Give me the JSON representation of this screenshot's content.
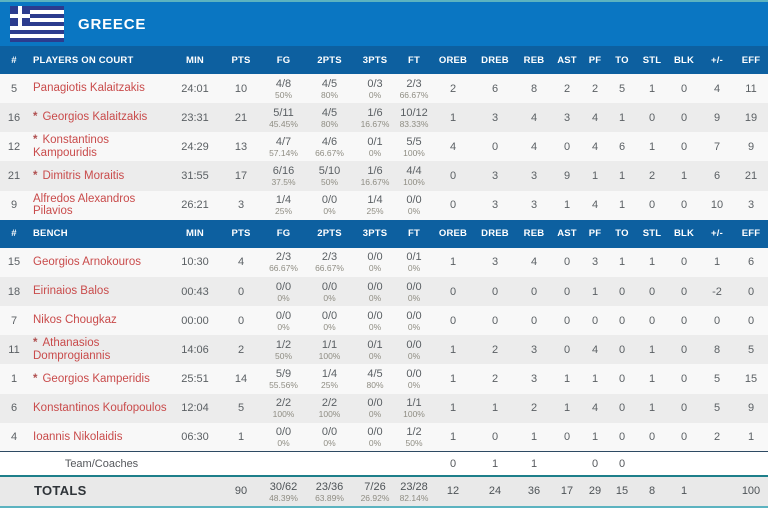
{
  "colors": {
    "title_bar_blue": "#0a76c2",
    "header_row_blue": "#0d60a0",
    "flag_navy": "#2c3c8e",
    "player_name_red": "#c94b4b",
    "totals_border_teal": "#1d7f8a",
    "team_row_border_navy": "#2e4a63",
    "row_alt_gray": "#ececec",
    "totals_bg_gray": "#e9e9e9"
  },
  "team": {
    "name": "GREECE",
    "flag": "greece-flag"
  },
  "table": {
    "columns": [
      "#",
      "PLAYERS ON COURT",
      "MIN",
      "PTS",
      "FG",
      "2PTS",
      "3PTS",
      "FT",
      "OREB",
      "DREB",
      "REB",
      "AST",
      "PF",
      "TO",
      "STL",
      "BLK",
      "+/-",
      "EFF"
    ],
    "bench_label": "BENCH",
    "on_court": [
      {
        "num": "5",
        "starter": false,
        "name": "Panagiotis Kalaitzakis",
        "min": "24:01",
        "pts": "10",
        "fg": "4/8",
        "fg_pct": "50%",
        "p2": "4/5",
        "p2_pct": "80%",
        "p3": "0/3",
        "p3_pct": "0%",
        "ft": "2/3",
        "ft_pct": "66.67%",
        "oreb": "2",
        "dreb": "6",
        "reb": "8",
        "ast": "2",
        "pf": "2",
        "to": "5",
        "stl": "1",
        "blk": "0",
        "pm": "4",
        "eff": "11"
      },
      {
        "num": "16",
        "starter": true,
        "name": "Georgios Kalaitzakis",
        "min": "23:31",
        "pts": "21",
        "fg": "5/11",
        "fg_pct": "45.45%",
        "p2": "4/5",
        "p2_pct": "80%",
        "p3": "1/6",
        "p3_pct": "16.67%",
        "ft": "10/12",
        "ft_pct": "83.33%",
        "oreb": "1",
        "dreb": "3",
        "reb": "4",
        "ast": "3",
        "pf": "4",
        "to": "1",
        "stl": "0",
        "blk": "0",
        "pm": "9",
        "eff": "19"
      },
      {
        "num": "12",
        "starter": true,
        "name": "Konstantinos Kampouridis",
        "min": "24:29",
        "pts": "13",
        "fg": "4/7",
        "fg_pct": "57.14%",
        "p2": "4/6",
        "p2_pct": "66.67%",
        "p3": "0/1",
        "p3_pct": "0%",
        "ft": "5/5",
        "ft_pct": "100%",
        "oreb": "4",
        "dreb": "0",
        "reb": "4",
        "ast": "0",
        "pf": "4",
        "to": "6",
        "stl": "1",
        "blk": "0",
        "pm": "7",
        "eff": "9"
      },
      {
        "num": "21",
        "starter": true,
        "name": "Dimitris Moraitis",
        "min": "31:55",
        "pts": "17",
        "fg": "6/16",
        "fg_pct": "37.5%",
        "p2": "5/10",
        "p2_pct": "50%",
        "p3": "1/6",
        "p3_pct": "16.67%",
        "ft": "4/4",
        "ft_pct": "100%",
        "oreb": "0",
        "dreb": "3",
        "reb": "3",
        "ast": "9",
        "pf": "1",
        "to": "1",
        "stl": "2",
        "blk": "1",
        "pm": "6",
        "eff": "21"
      },
      {
        "num": "9",
        "starter": false,
        "name": "Alfredos Alexandros Pilavios",
        "min": "26:21",
        "pts": "3",
        "fg": "1/4",
        "fg_pct": "25%",
        "p2": "0/0",
        "p2_pct": "0%",
        "p3": "1/4",
        "p3_pct": "25%",
        "ft": "0/0",
        "ft_pct": "0%",
        "oreb": "0",
        "dreb": "3",
        "reb": "3",
        "ast": "1",
        "pf": "4",
        "to": "1",
        "stl": "0",
        "blk": "0",
        "pm": "10",
        "eff": "3"
      }
    ],
    "bench": [
      {
        "num": "15",
        "starter": false,
        "name": "Georgios Arnokouros",
        "min": "10:30",
        "pts": "4",
        "fg": "2/3",
        "fg_pct": "66.67%",
        "p2": "2/3",
        "p2_pct": "66.67%",
        "p3": "0/0",
        "p3_pct": "0%",
        "ft": "0/1",
        "ft_pct": "0%",
        "oreb": "1",
        "dreb": "3",
        "reb": "4",
        "ast": "0",
        "pf": "3",
        "to": "1",
        "stl": "1",
        "blk": "0",
        "pm": "1",
        "eff": "6"
      },
      {
        "num": "18",
        "starter": false,
        "name": "Eirinaios Balos",
        "min": "00:43",
        "pts": "0",
        "fg": "0/0",
        "fg_pct": "0%",
        "p2": "0/0",
        "p2_pct": "0%",
        "p3": "0/0",
        "p3_pct": "0%",
        "ft": "0/0",
        "ft_pct": "0%",
        "oreb": "0",
        "dreb": "0",
        "reb": "0",
        "ast": "0",
        "pf": "1",
        "to": "0",
        "stl": "0",
        "blk": "0",
        "pm": "-2",
        "eff": "0"
      },
      {
        "num": "7",
        "starter": false,
        "name": "Nikos Chougkaz",
        "min": "00:00",
        "pts": "0",
        "fg": "0/0",
        "fg_pct": "0%",
        "p2": "0/0",
        "p2_pct": "0%",
        "p3": "0/0",
        "p3_pct": "0%",
        "ft": "0/0",
        "ft_pct": "0%",
        "oreb": "0",
        "dreb": "0",
        "reb": "0",
        "ast": "0",
        "pf": "0",
        "to": "0",
        "stl": "0",
        "blk": "0",
        "pm": "0",
        "eff": "0"
      },
      {
        "num": "11",
        "starter": true,
        "name": "Athanasios Domprogiannis",
        "min": "14:06",
        "pts": "2",
        "fg": "1/2",
        "fg_pct": "50%",
        "p2": "1/1",
        "p2_pct": "100%",
        "p3": "0/1",
        "p3_pct": "0%",
        "ft": "0/0",
        "ft_pct": "0%",
        "oreb": "1",
        "dreb": "2",
        "reb": "3",
        "ast": "0",
        "pf": "4",
        "to": "0",
        "stl": "1",
        "blk": "0",
        "pm": "8",
        "eff": "5"
      },
      {
        "num": "1",
        "starter": true,
        "name": "Georgios Kamperidis",
        "min": "25:51",
        "pts": "14",
        "fg": "5/9",
        "fg_pct": "55.56%",
        "p2": "1/4",
        "p2_pct": "25%",
        "p3": "4/5",
        "p3_pct": "80%",
        "ft": "0/0",
        "ft_pct": "0%",
        "oreb": "1",
        "dreb": "2",
        "reb": "3",
        "ast": "1",
        "pf": "1",
        "to": "0",
        "stl": "1",
        "blk": "0",
        "pm": "5",
        "eff": "15"
      },
      {
        "num": "6",
        "starter": false,
        "name": "Konstantinos Koufopoulos",
        "min": "12:04",
        "pts": "5",
        "fg": "2/2",
        "fg_pct": "100%",
        "p2": "2/2",
        "p2_pct": "100%",
        "p3": "0/0",
        "p3_pct": "0%",
        "ft": "1/1",
        "ft_pct": "100%",
        "oreb": "1",
        "dreb": "1",
        "reb": "2",
        "ast": "1",
        "pf": "4",
        "to": "0",
        "stl": "1",
        "blk": "0",
        "pm": "5",
        "eff": "9"
      },
      {
        "num": "4",
        "starter": false,
        "name": "Ioannis Nikolaidis",
        "min": "06:30",
        "pts": "1",
        "fg": "0/0",
        "fg_pct": "0%",
        "p2": "0/0",
        "p2_pct": "0%",
        "p3": "0/0",
        "p3_pct": "0%",
        "ft": "1/2",
        "ft_pct": "50%",
        "oreb": "1",
        "dreb": "0",
        "reb": "1",
        "ast": "0",
        "pf": "1",
        "to": "0",
        "stl": "0",
        "blk": "0",
        "pm": "2",
        "eff": "1"
      }
    ],
    "team_coaches": {
      "name": "Team/Coaches",
      "oreb": "0",
      "dreb": "1",
      "reb": "1",
      "ast": "",
      "pf": "0",
      "to": "0",
      "stl": "",
      "blk": "",
      "pm": "",
      "eff": ""
    },
    "totals": {
      "label": "TOTALS",
      "min": "",
      "pts": "90",
      "fg": "30/62",
      "fg_pct": "48.39%",
      "p2": "23/36",
      "p2_pct": "63.89%",
      "p3": "7/26",
      "p3_pct": "26.92%",
      "ft": "23/28",
      "ft_pct": "82.14%",
      "oreb": "12",
      "dreb": "24",
      "reb": "36",
      "ast": "17",
      "pf": "29",
      "to": "15",
      "stl": "8",
      "blk": "1",
      "pm": "",
      "eff": "100"
    }
  }
}
